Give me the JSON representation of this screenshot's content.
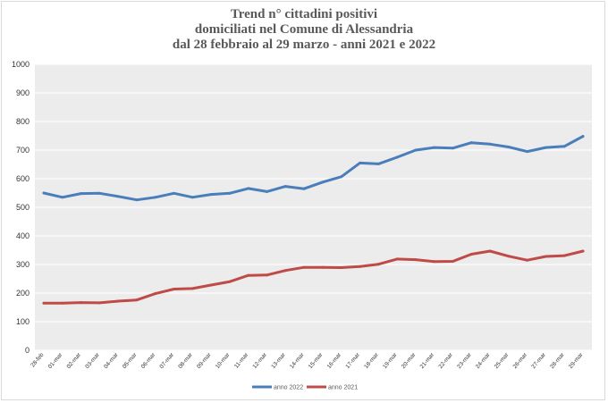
{
  "chart_data": {
    "type": "line",
    "title_lines": [
      "Trend n° cittadini positivi",
      "domiciliati nel Comune di Alessandria",
      "dal 28 febbraio al 29 marzo - anni 2021 e 2022"
    ],
    "xlabel": "",
    "ylabel": "",
    "ylim": [
      0,
      1000
    ],
    "yticks": [
      0,
      100,
      200,
      300,
      400,
      500,
      600,
      700,
      800,
      900,
      1000
    ],
    "grid": true,
    "legend_position": "bottom",
    "categories": [
      "28-feb",
      "01-mar",
      "02-mar",
      "03-mar",
      "04-mar",
      "05-mar",
      "06-mar",
      "07-mar",
      "08-mar",
      "09-mar",
      "10-mar",
      "11-mar",
      "12-mar",
      "13-mar",
      "14-mar",
      "15-mar",
      "16-mar",
      "17-mar",
      "18-mar",
      "19-mar",
      "20-mar",
      "21-mar",
      "22-mar",
      "23-mar",
      "24-mar",
      "25-mar",
      "26-mar",
      "27-mar",
      "28-mar",
      "29-mar"
    ],
    "series": [
      {
        "name": "anno 2022",
        "color": "#4a7ebb",
        "values": [
          550,
          535,
          548,
          549,
          538,
          526,
          535,
          549,
          535,
          545,
          549,
          566,
          555,
          573,
          565,
          588,
          607,
          655,
          652,
          675,
          700,
          709,
          707,
          726,
          721,
          711,
          695,
          709,
          713,
          748
        ]
      },
      {
        "name": "anno 2021",
        "color": "#be4b48",
        "values": [
          165,
          165,
          167,
          166,
          172,
          176,
          198,
          214,
          216,
          228,
          240,
          262,
          263,
          279,
          290,
          290,
          289,
          293,
          301,
          319,
          317,
          310,
          311,
          336,
          347,
          329,
          315,
          328,
          331,
          347
        ]
      }
    ]
  }
}
